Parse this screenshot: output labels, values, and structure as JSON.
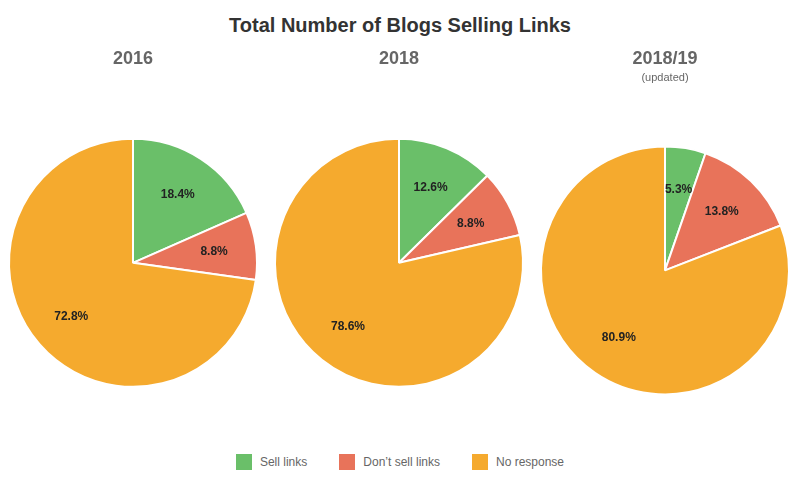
{
  "title": "Total Number of Blogs Selling Links",
  "chart_data": [
    {
      "type": "pie",
      "title": "2016",
      "categories": [
        "Sell links",
        "Don’t sell links",
        "No response"
      ],
      "values": [
        18.4,
        8.8,
        72.8
      ],
      "value_labels": [
        "18.4%",
        "8.8%",
        "72.8%"
      ],
      "colors": [
        "#6abf69",
        "#e8735a",
        "#f5aa2e"
      ],
      "data_labels": true,
      "legend": "bottom"
    },
    {
      "type": "pie",
      "title": "2018",
      "categories": [
        "Sell links",
        "Don’t sell links",
        "No response"
      ],
      "values": [
        12.6,
        8.8,
        78.6
      ],
      "value_labels": [
        "12.6%",
        "8.8%",
        "78.6%"
      ],
      "colors": [
        "#6abf69",
        "#e8735a",
        "#f5aa2e"
      ],
      "data_labels": true,
      "legend": "bottom"
    },
    {
      "type": "pie",
      "title": "2018/19",
      "subtitle": "(updated)",
      "categories": [
        "Sell links",
        "Don’t sell links",
        "No response"
      ],
      "values": [
        5.3,
        13.8,
        80.9
      ],
      "value_labels": [
        "5.3%",
        "13.8%",
        "80.9%"
      ],
      "colors": [
        "#6abf69",
        "#e8735a",
        "#f5aa2e"
      ],
      "data_labels": true,
      "legend": "bottom"
    }
  ]
}
